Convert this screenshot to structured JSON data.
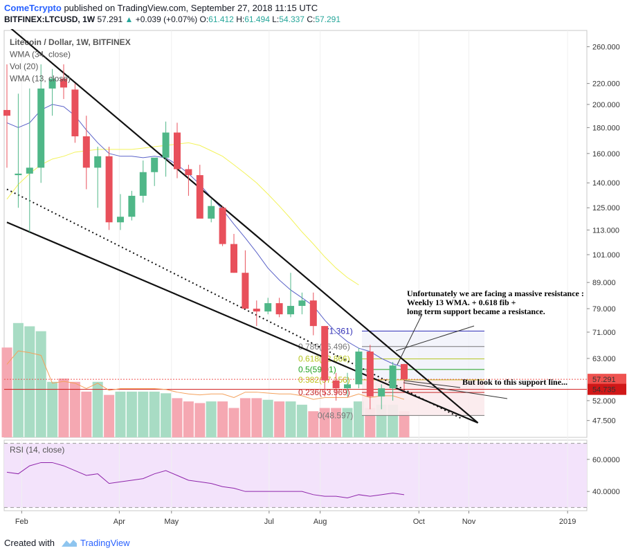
{
  "header": {
    "publisher": "ComeTcrypto",
    "published_text": "published on TradingView.com, September 27, 2018 11:15 UTC",
    "symbol": "BITFINEX:LTCUSD, 1W",
    "last": "57.291",
    "change_arrow": "▲",
    "change": "+0.039 (+0.07%)",
    "o_label": "O:",
    "o": "61.412",
    "h_label": "H:",
    "h": "61.494",
    "l_label": "L:",
    "l": "54.337",
    "c_label": "C:",
    "c": "57.291"
  },
  "footer": {
    "created_with": "Created with",
    "brand": "TradingView",
    "logo_icon": "tradingview-logo-icon"
  },
  "chart_data": {
    "type": "candlestick",
    "title": "Litecoin / Dollar, 1W, BITFINEX",
    "legend": [
      "Litecoin / Dollar, 1W, BITFINEX",
      "WMA (34, close)",
      "Vol (20)",
      "WMA (13, close)"
    ],
    "y_scale": "log",
    "y_ticks": [
      "260.000",
      "220.000",
      "200.000",
      "180.000",
      "160.000",
      "140.000",
      "125.000",
      "113.000",
      "101.000",
      "89.000",
      "79.000",
      "71.000",
      "63.000",
      "52.000",
      "47.500"
    ],
    "y_tick_values": [
      260,
      220,
      200,
      180,
      160,
      140,
      125,
      113,
      101,
      89,
      79,
      71,
      63,
      52,
      47.5
    ],
    "ylim": [
      44,
      280
    ],
    "x_ticks": [
      "Feb",
      "Apr",
      "May",
      "Jul",
      "Aug",
      "Oct",
      "Nov",
      "2019"
    ],
    "x_tick_week_index": [
      1.3,
      9.9,
      14.5,
      23.1,
      27.6,
      36.3,
      40.7,
      49.4
    ],
    "candles": [
      {
        "o": 195,
        "h": 240,
        "l": 150,
        "c": 190
      },
      {
        "o": 145,
        "h": 210,
        "l": 125,
        "c": 146
      },
      {
        "o": 146,
        "h": 215,
        "l": 112,
        "c": 150
      },
      {
        "o": 150,
        "h": 240,
        "l": 140,
        "c": 215
      },
      {
        "o": 215,
        "h": 235,
        "l": 190,
        "c": 225
      },
      {
        "o": 225,
        "h": 240,
        "l": 205,
        "c": 216
      },
      {
        "o": 214,
        "h": 220,
        "l": 168,
        "c": 173
      },
      {
        "o": 173,
        "h": 190,
        "l": 136,
        "c": 150
      },
      {
        "o": 150,
        "h": 165,
        "l": 125,
        "c": 158
      },
      {
        "o": 158,
        "h": 165,
        "l": 113,
        "c": 117
      },
      {
        "o": 117,
        "h": 133,
        "l": 113,
        "c": 120
      },
      {
        "o": 120,
        "h": 135,
        "l": 118,
        "c": 132
      },
      {
        "o": 132,
        "h": 155,
        "l": 128,
        "c": 147
      },
      {
        "o": 147,
        "h": 156,
        "l": 138,
        "c": 157
      },
      {
        "o": 157,
        "h": 185,
        "l": 144,
        "c": 176
      },
      {
        "o": 176,
        "h": 184,
        "l": 143,
        "c": 149
      },
      {
        "o": 149,
        "h": 152,
        "l": 132,
        "c": 145
      },
      {
        "o": 145,
        "h": 152,
        "l": 120,
        "c": 119
      },
      {
        "o": 119,
        "h": 130,
        "l": 117,
        "c": 126
      },
      {
        "o": 125,
        "h": 126,
        "l": 105,
        "c": 106
      },
      {
        "o": 106,
        "h": 111,
        "l": 93,
        "c": 93
      },
      {
        "o": 93,
        "h": 103,
        "l": 79,
        "c": 79
      },
      {
        "o": 79,
        "h": 82,
        "l": 73,
        "c": 78
      },
      {
        "o": 78,
        "h": 83,
        "l": 77,
        "c": 81
      },
      {
        "o": 81,
        "h": 83,
        "l": 76,
        "c": 77
      },
      {
        "o": 77,
        "h": 93,
        "l": 76,
        "c": 80
      },
      {
        "o": 80,
        "h": 85,
        "l": 77,
        "c": 82
      },
      {
        "o": 82,
        "h": 85,
        "l": 70,
        "c": 73
      },
      {
        "o": 73,
        "h": 73,
        "l": 53,
        "c": 57
      },
      {
        "o": 57,
        "h": 59,
        "l": 52,
        "c": 55
      },
      {
        "o": 55,
        "h": 59,
        "l": 53,
        "c": 56
      },
      {
        "o": 56,
        "h": 66,
        "l": 55,
        "c": 65
      },
      {
        "o": 65,
        "h": 67,
        "l": 50,
        "c": 53
      },
      {
        "o": 53,
        "h": 56,
        "l": 50,
        "c": 55
      },
      {
        "o": 55,
        "h": 62,
        "l": 52,
        "c": 61
      },
      {
        "o": 61.412,
        "h": 61.494,
        "l": 54.337,
        "c": 57.291
      }
    ],
    "wma13": [
      184,
      180,
      184,
      195,
      200,
      198,
      190,
      178,
      168,
      160,
      158,
      158,
      157,
      158,
      157,
      152,
      146,
      139,
      131,
      124,
      116,
      109,
      102,
      95,
      90,
      86,
      83,
      80,
      75,
      71,
      68,
      66,
      65,
      63,
      61.5,
      60.5
    ],
    "wma34": [
      130,
      139,
      146,
      152,
      156,
      158,
      161,
      162,
      163,
      163,
      163,
      163,
      164,
      165,
      166,
      167,
      168,
      166,
      162,
      158,
      152,
      146,
      140,
      133,
      126,
      119,
      112,
      106,
      100,
      95,
      91,
      88
    ],
    "volume": [
      55,
      70,
      68,
      65,
      34,
      36,
      34,
      28,
      34,
      26,
      28,
      28,
      28,
      28,
      27,
      24,
      22,
      21,
      22,
      22,
      18,
      24,
      24,
      23,
      22,
      22,
      20,
      16,
      18,
      18,
      18,
      22,
      18,
      20,
      20,
      16
    ],
    "volume_range": [
      0,
      75
    ],
    "rsi": {
      "label": "RSI (14, close)",
      "values": [
        52,
        51,
        56,
        58,
        58,
        56,
        53,
        50,
        51,
        45,
        46,
        47,
        48,
        51,
        53,
        50,
        47,
        46,
        45,
        43,
        42,
        40,
        40,
        40,
        40,
        40,
        40,
        38,
        37,
        37,
        36,
        38,
        37,
        38,
        39,
        38
      ],
      "ticks": [
        "60.0000",
        "40.0000"
      ],
      "tick_values": [
        60,
        40
      ],
      "band": [
        70,
        30
      ],
      "ylim": [
        28,
        72
      ]
    },
    "fib_levels": [
      {
        "label": "(71.361)",
        "value": 71.361,
        "color": "#2c2ab5"
      },
      {
        "label": "0.786(66.496)",
        "value": 66.496,
        "color": "#777777"
      },
      {
        "label": "0.618(62.866)",
        "value": 62.866,
        "color": "#b5c41e"
      },
      {
        "label": "0.5(59.91)",
        "value": 59.91,
        "color": "#1fa01f"
      },
      {
        "label": "0.382(57.156)",
        "value": 57.156,
        "color": "#bfbf1b"
      },
      {
        "label": "0.236(53.969)",
        "value": 53.969,
        "color": "#c62828"
      },
      {
        "label": "0(48.597)",
        "value": 48.597,
        "color": "#777777"
      }
    ],
    "price_labels": [
      {
        "text": "57.291",
        "value": 57.291,
        "color": "#ef5350"
      },
      {
        "text": "54.735",
        "value": 54.735,
        "color": "#d01717"
      }
    ],
    "support_level": 54.735,
    "annotations": [
      "Unfortunately we are facing a massive resistance :",
      "Weekly 13 WMA. + 0.618 fib +",
      "long term support became a resistance.",
      "But look to this support line..."
    ],
    "trendlines": {
      "upper_resistance": [
        [
          0,
          287
        ],
        [
          41.5,
          47
        ]
      ],
      "lower_support": [
        [
          0,
          117
        ],
        [
          41.5,
          47
        ]
      ],
      "dotted_resistance": [
        [
          0,
          136
        ],
        [
          40,
          48
        ]
      ]
    }
  }
}
